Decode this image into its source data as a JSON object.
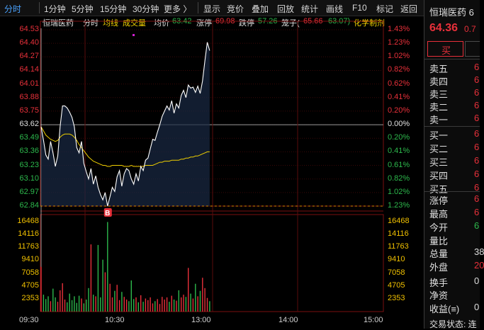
{
  "toolbar": {
    "tabs": [
      "分时",
      "1分钟",
      "5分钟",
      "15分钟",
      "30分钟",
      "更多 〉",
      "显示",
      "竞价",
      "叠加",
      "回放",
      "统计",
      "画线",
      "F10",
      "标记",
      "返回"
    ]
  },
  "info": {
    "stock_name": "恒瑞医药",
    "period": "分时",
    "avg_label": "均线",
    "vol_label": "成交量",
    "avg_price_label": "均价",
    "avg_price": "63.42",
    "limit_up_label": "涨停",
    "limit_up": "69.98",
    "limit_down_label": "跌停",
    "limit_down": "57.26",
    "cage_label": "笼子(",
    "cage_low": "65.66",
    "cage_high": "63.07)",
    "extra": "化学制剂"
  },
  "price_axis": {
    "left": [
      "64.53",
      "64.40",
      "64.27",
      "64.14",
      "64.01",
      "63.88",
      "63.75",
      "63.62",
      "63.49",
      "63.36",
      "63.23",
      "63.10",
      "62.97",
      "62.84"
    ],
    "right": [
      "1.43%",
      "1.23%",
      "1.02%",
      "0.82%",
      "0.62%",
      "0.41%",
      "0.20%",
      "0.00%",
      "0.20%",
      "0.41%",
      "0.61%",
      "0.82%",
      "1.02%",
      "1.23%"
    ]
  },
  "volume_axis": [
    "16468",
    "14116",
    "11763",
    "9410",
    "7058",
    "4705",
    "2353"
  ],
  "time_axis": [
    "09:30",
    "10:30",
    "13:00",
    "14:00",
    "15:00"
  ],
  "marker": "B",
  "right_panel": {
    "title": "恒瑞医药 6",
    "price": "64.36",
    "change": "0.7",
    "buy_button": "买",
    "sell_rows": [
      "卖五",
      "卖四",
      "卖三",
      "卖二",
      "卖一"
    ],
    "buy_rows": [
      "买一",
      "买二",
      "买三",
      "买四",
      "买五"
    ],
    "sell_partial": [
      "6",
      "6",
      "6",
      "6",
      "6"
    ],
    "buy_partial": [
      "6",
      "6",
      "6",
      "6",
      "6"
    ],
    "stats": [
      {
        "label": "涨停",
        "value": "6"
      },
      {
        "label": "最高",
        "value": "6"
      },
      {
        "label": "今开",
        "value": "6"
      },
      {
        "label": "量比",
        "value": ""
      },
      {
        "label": "总量",
        "value": "38"
      },
      {
        "label": "外盘",
        "value": "20"
      },
      {
        "label": "换手",
        "value": "0"
      },
      {
        "label": "净资",
        "value": ""
      },
      {
        "label": "收益(≡)",
        "value": "0"
      }
    ],
    "footer": "交易状态: 连"
  },
  "colors": {
    "up": "#e8303a",
    "down": "#2db84c",
    "flat": "#e0e0e0",
    "price_line": "#ffffff",
    "avg_line": "#f0d000",
    "accent": "#4aa3ff"
  },
  "chart_data": {
    "type": "line",
    "prev_close": 63.62,
    "ylim": [
      62.84,
      64.53
    ],
    "x_labels": [
      "09:30",
      "10:30",
      "13:00",
      "14:00",
      "15:00"
    ],
    "series": [
      {
        "name": "分时",
        "values": [
          63.6,
          63.47,
          63.33,
          63.29,
          63.46,
          63.35,
          63.22,
          63.32,
          63.6,
          63.8,
          63.8,
          63.78,
          63.74,
          63.69,
          63.6,
          63.4,
          63.35,
          63.46,
          63.25,
          63.17,
          63.1,
          63.2,
          63.05,
          63.13,
          63.02,
          62.95,
          62.9,
          62.97,
          62.84,
          62.93,
          63.02,
          62.98,
          63.12,
          63.18,
          63.03,
          63.15,
          63.2,
          63.18,
          63.1,
          63.05,
          63.15,
          63.08,
          63.22,
          63.18,
          63.28,
          63.3,
          63.39,
          63.48,
          63.47,
          63.55,
          63.62,
          63.7,
          63.75,
          63.8,
          63.76,
          63.85,
          63.73,
          63.82,
          63.78,
          63.9,
          63.95,
          63.88,
          64.0,
          63.97,
          63.98,
          63.93,
          63.99,
          63.92,
          64.04,
          64.23,
          64.41,
          64.33
        ]
      },
      {
        "name": "均线",
        "values": [
          63.6,
          63.56,
          63.52,
          63.5,
          63.48,
          63.47,
          63.46,
          63.47,
          63.5,
          63.52,
          63.53,
          63.53,
          63.53,
          63.52,
          63.5,
          63.47,
          63.43,
          63.4,
          63.37,
          63.34,
          63.31,
          63.29,
          63.27,
          63.26,
          63.25,
          63.24,
          63.23,
          63.23,
          63.22,
          63.22,
          63.23,
          63.23,
          63.23,
          63.23,
          63.23,
          63.22,
          63.22,
          63.22,
          63.23,
          63.22,
          63.22,
          63.22,
          63.22,
          63.22,
          63.23,
          63.23,
          63.23,
          63.23,
          63.24,
          63.25,
          63.26,
          63.26,
          63.27,
          63.27,
          63.27,
          63.28,
          63.28,
          63.28,
          63.28,
          63.29,
          63.29,
          63.3,
          63.3,
          63.31,
          63.31,
          63.32,
          63.32,
          63.33,
          63.34,
          63.35,
          63.36,
          63.36
        ]
      },
      {
        "name": "成交量",
        "values": [
          8200,
          3100,
          2300,
          2800,
          1900,
          4200,
          2600,
          1800,
          3900,
          5200,
          2200,
          1700,
          3300,
          2100,
          2800,
          1600,
          2900,
          2400,
          1500,
          2200,
          4300,
          12300,
          3100,
          2800,
          12200,
          2600,
          9500,
          7200,
          16400,
          5100,
          2600,
          3800,
          4900,
          2100,
          3600,
          2700,
          2200,
          1900,
          5700,
          2300,
          2600,
          1700,
          3000,
          1800,
          2400,
          2100,
          2600,
          1500,
          1900,
          2300,
          1400,
          2700,
          2200,
          2600,
          1800,
          2900,
          2200,
          2000,
          3900,
          2600,
          3100,
          2700,
          8000,
          3300,
          2400,
          5100,
          2800,
          3800,
          6200,
          4300,
          2500,
          1900
        ]
      }
    ]
  }
}
